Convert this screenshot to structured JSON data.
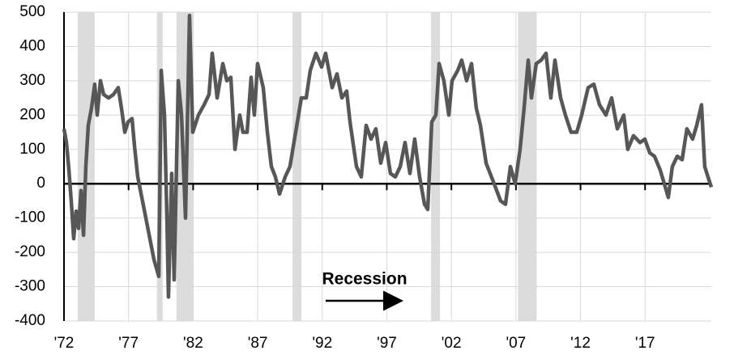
{
  "chart_data": {
    "type": "line",
    "annotation": "Recession",
    "x": [
      1972.0,
      1972.19,
      1972.38,
      1972.56,
      1972.75,
      1972.94,
      1973.13,
      1973.32,
      1973.51,
      1973.69,
      1973.88,
      1974.13,
      1974.38,
      1974.57,
      1974.82,
      1975.07,
      1975.45,
      1975.83,
      1976.2,
      1976.45,
      1976.71,
      1976.96,
      1977.27,
      1977.46,
      1977.71,
      1978.34,
      1978.96,
      1979.34,
      1979.53,
      1979.78,
      1979.97,
      1980.09,
      1980.34,
      1980.53,
      1980.85,
      1981.1,
      1981.41,
      1981.72,
      1981.97,
      1982.41,
      1982.85,
      1983.23,
      1983.48,
      1983.86,
      1984.3,
      1984.61,
      1984.92,
      1985.24,
      1985.61,
      1985.86,
      1986.18,
      1986.49,
      1986.74,
      1986.99,
      1987.43,
      1987.75,
      1988.06,
      1988.37,
      1988.69,
      1989.13,
      1989.5,
      1989.94,
      1990.38,
      1990.76,
      1991.07,
      1991.51,
      1991.95,
      1992.26,
      1992.77,
      1993.14,
      1993.52,
      1993.89,
      1994.15,
      1994.65,
      1995.02,
      1995.4,
      1995.78,
      1996.15,
      1996.53,
      1996.91,
      1997.28,
      1997.66,
      1998.04,
      1998.41,
      1998.79,
      1999.16,
      1999.54,
      1999.92,
      2000.17,
      2000.48,
      2000.8,
      2001.05,
      2001.42,
      2001.8,
      2002.05,
      2002.49,
      2002.8,
      2003.18,
      2003.56,
      2003.93,
      2004.25,
      2004.69,
      2005.31,
      2005.81,
      2006.19,
      2006.57,
      2006.94,
      2007.32,
      2007.63,
      2007.95,
      2008.2,
      2008.57,
      2008.95,
      2009.33,
      2009.7,
      2010.02,
      2010.46,
      2010.83,
      2011.27,
      2011.71,
      2012.09,
      2012.59,
      2013.03,
      2013.47,
      2013.97,
      2014.41,
      2014.85,
      2015.35,
      2015.66,
      2016.1,
      2016.61,
      2016.98,
      2017.36,
      2017.73,
      2018.17,
      2018.49,
      2018.8,
      2019.11,
      2019.49,
      2019.87,
      2020.24,
      2020.68,
      2021.0,
      2021.37,
      2021.62,
      2021.87,
      2022.13
    ],
    "values": [
      160,
      120,
      40,
      -50,
      -160,
      -80,
      -130,
      -20,
      -150,
      50,
      170,
      220,
      290,
      200,
      300,
      260,
      250,
      260,
      280,
      220,
      150,
      180,
      190,
      110,
      20,
      -100,
      -220,
      -270,
      330,
      200,
      -100,
      -330,
      30,
      -280,
      300,
      200,
      -100,
      490,
      150,
      200,
      230,
      260,
      380,
      250,
      350,
      300,
      310,
      100,
      200,
      150,
      150,
      310,
      200,
      350,
      280,
      150,
      50,
      20,
      -30,
      20,
      50,
      150,
      250,
      250,
      330,
      380,
      340,
      380,
      280,
      320,
      250,
      270,
      180,
      50,
      20,
      170,
      130,
      160,
      60,
      120,
      30,
      20,
      50,
      120,
      30,
      130,
      20,
      -60,
      -75,
      180,
      200,
      350,
      300,
      200,
      300,
      330,
      360,
      300,
      350,
      220,
      170,
      60,
      0,
      -50,
      -60,
      50,
      0,
      100,
      220,
      360,
      250,
      350,
      360,
      380,
      250,
      360,
      250,
      200,
      150,
      150,
      200,
      280,
      290,
      230,
      200,
      250,
      160,
      200,
      100,
      140,
      120,
      130,
      90,
      80,
      40,
      0,
      -40,
      50,
      80,
      70,
      160,
      130,
      170,
      230,
      50,
      20,
      -10
    ],
    "color": "#575757",
    "recessions": [
      [
        1973.06,
        1974.38
      ],
      [
        1979.2,
        1979.64
      ],
      [
        1980.71,
        1982.03
      ],
      [
        1989.7,
        1990.38
      ],
      [
        2000.43,
        2001.12
      ],
      [
        2007.16,
        2008.6
      ]
    ],
    "recession_color": "#dcdcdc",
    "xlim": [
      1972,
      2022.13
    ],
    "xticks": [
      {
        "value": 1972,
        "label": "'72"
      },
      {
        "value": 1977,
        "label": "'77"
      },
      {
        "value": 1982,
        "label": "'82"
      },
      {
        "value": 1987,
        "label": "'87"
      },
      {
        "value": 1992,
        "label": "'92"
      },
      {
        "value": 1997,
        "label": "'97"
      },
      {
        "value": 2002,
        "label": "'02"
      },
      {
        "value": 2007,
        "label": "'07"
      },
      {
        "value": 2012,
        "label": "'12"
      },
      {
        "value": 2017,
        "label": "'17"
      }
    ],
    "ylim": [
      -400,
      500
    ],
    "yticks": [
      -400,
      -300,
      -200,
      -100,
      0,
      100,
      200,
      300,
      400,
      500
    ],
    "grid": true
  }
}
